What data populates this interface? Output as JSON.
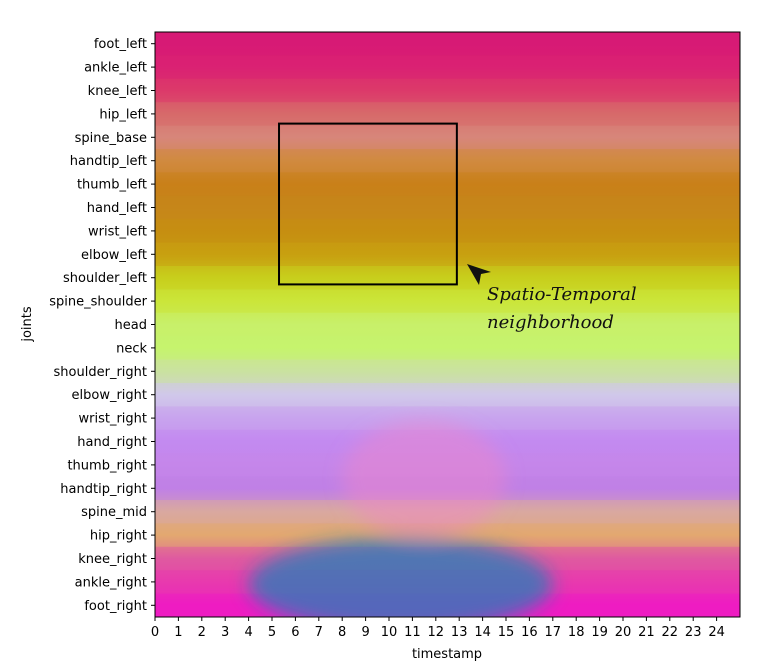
{
  "chart_data": {
    "type": "heatmap",
    "title": "",
    "xlabel": "timestamp",
    "ylabel": "joints",
    "x_ticks": [
      0,
      1,
      2,
      3,
      4,
      5,
      6,
      7,
      8,
      9,
      10,
      11,
      12,
      13,
      14,
      15,
      16,
      17,
      18,
      19,
      20,
      21,
      22,
      23,
      24
    ],
    "xlim": [
      0,
      25
    ],
    "joints": [
      "foot_left",
      "ankle_left",
      "knee_left",
      "hip_left",
      "spine_base",
      "handtip_left",
      "thumb_left",
      "hand_left",
      "wrist_left",
      "elbow_left",
      "shoulder_left",
      "spine_shoulder",
      "head",
      "neck",
      "shoulder_right",
      "elbow_right",
      "wrist_right",
      "hand_right",
      "thumb_right",
      "handtip_right",
      "spine_mid",
      "hip_right",
      "knee_right",
      "ankle_right",
      "foot_right"
    ],
    "row_colors": [
      "#d81b75",
      "#db2173",
      "#dc3a6a",
      "#d86a6a",
      "#d8867a",
      "#d08a40",
      "#c9801a",
      "#c6861a",
      "#c78e12",
      "#c8a010",
      "#c8cf1c",
      "#cbe63a",
      "#c8f06a",
      "#c6f46e",
      "#cae2a0",
      "#d0c8ea",
      "#c8a4ee",
      "#c48af0",
      "#c586ea",
      "#c080e6",
      "#d9a8a0",
      "#e3a870",
      "#df5aa0",
      "#e83aae",
      "#ee1cc2"
    ],
    "perturbations": [
      {
        "row_from": 21,
        "row_to": 24,
        "t_from": 4,
        "t_to": 17,
        "color": "#2080b8"
      },
      {
        "row_from": 16,
        "row_to": 20,
        "t_from": 8,
        "t_to": 15,
        "color": "#ef86c8"
      }
    ],
    "highlight_box": {
      "t_from": 5.3,
      "t_to": 12.9,
      "joint_from": "spine_base",
      "joint_to": "shoulder_left"
    },
    "annotation": {
      "line1": "Spatio-Temporal",
      "line2": "neighborhood"
    }
  }
}
